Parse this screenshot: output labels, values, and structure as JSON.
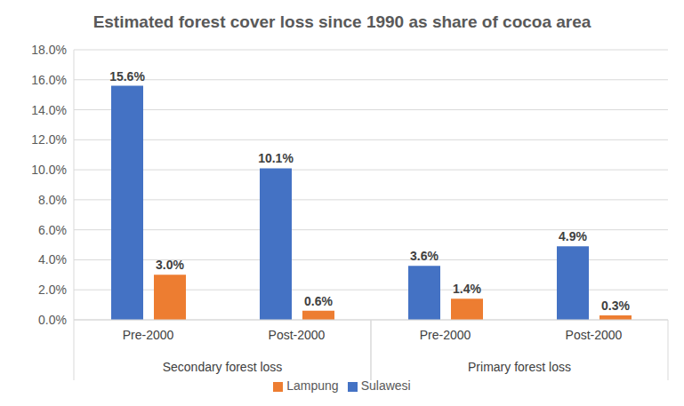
{
  "chart_data": {
    "type": "bar",
    "title": "Estimated forest cover loss since 1990 as share of cocoa area",
    "categories": [
      "Pre-2000",
      "Post-2000",
      "Pre-2000",
      "Post-2000"
    ],
    "groups": [
      "Secondary forest loss",
      "Secondary forest loss",
      "Primary forest loss",
      "Primary forest loss"
    ],
    "series": [
      {
        "name": "Sulawesi",
        "color": "#4472c4",
        "values": [
          15.6,
          10.1,
          3.6,
          4.9
        ],
        "value_labels": [
          "15.6%",
          "10.1%",
          "3.6%",
          "4.9%"
        ]
      },
      {
        "name": "Lampung",
        "color": "#ed7d31",
        "values": [
          3.0,
          0.6,
          1.4,
          0.3
        ],
        "value_labels": [
          "3.0%",
          "0.6%",
          "1.4%",
          "0.3%"
        ]
      }
    ],
    "ylim": [
      0,
      18
    ],
    "yticks": [
      {
        "value": 0,
        "label": "0.0%"
      },
      {
        "value": 2,
        "label": "2.0%"
      },
      {
        "value": 4,
        "label": "4.0%"
      },
      {
        "value": 6,
        "label": "6.0%"
      },
      {
        "value": 8,
        "label": "8.0%"
      },
      {
        "value": 10,
        "label": "10.0%"
      },
      {
        "value": 12,
        "label": "12.0%"
      },
      {
        "value": 14,
        "label": "14.0%"
      },
      {
        "value": 16,
        "label": "16.0%"
      },
      {
        "value": 18,
        "label": "18.0%"
      }
    ],
    "grid": true,
    "legend": "bottom",
    "data_labels": true
  }
}
